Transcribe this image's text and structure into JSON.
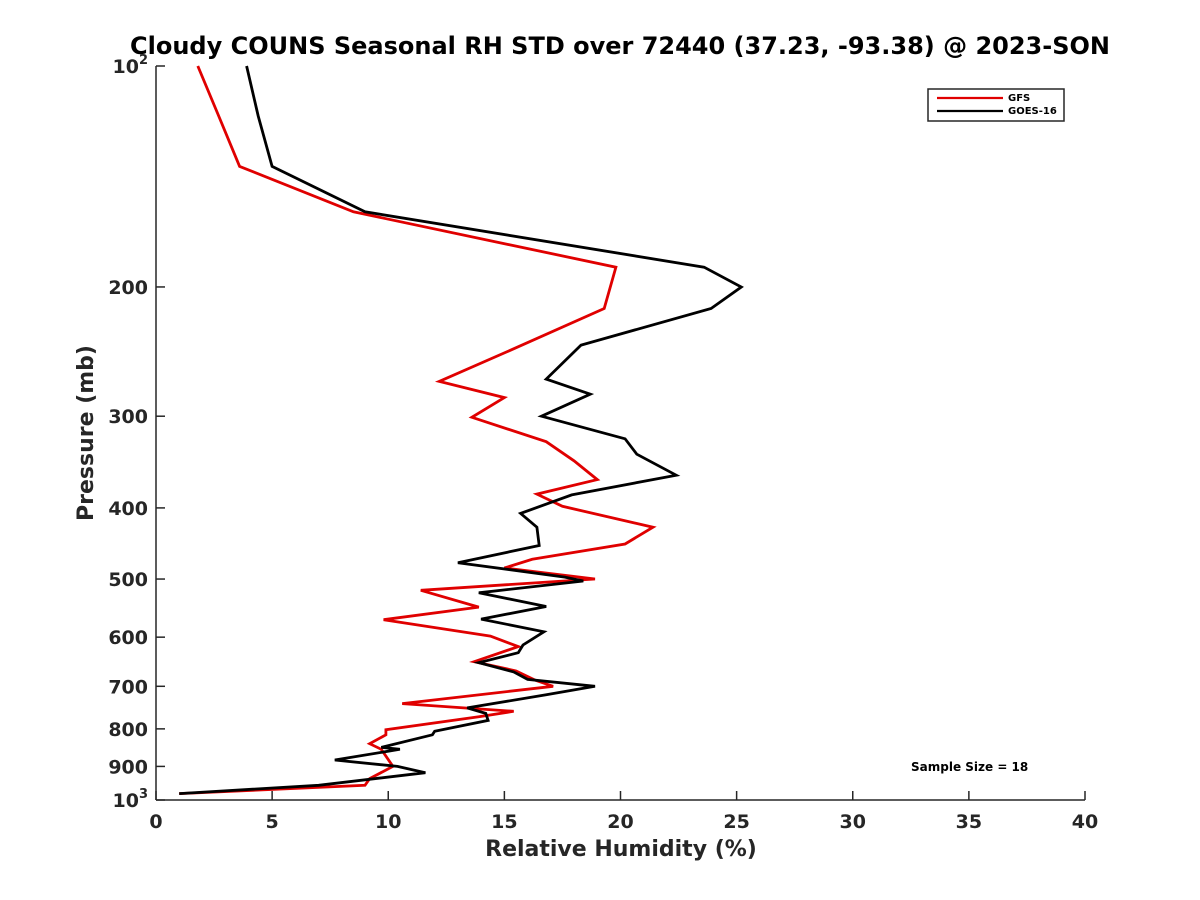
{
  "chart_data": {
    "type": "line",
    "title": "Cloudy COUNS Seasonal RH STD over 72440 (37.23, -93.38) @ 2023-SON",
    "xlabel": "Relative Humidity (%)",
    "ylabel": "Pressure (mb)",
    "xlim": [
      0,
      40
    ],
    "ylim": [
      100,
      1000
    ],
    "yscale": "log",
    "y_reversed": true,
    "grid": false,
    "xticks": [
      0,
      5,
      10,
      15,
      20,
      25,
      30,
      35,
      40
    ],
    "yticks": [
      {
        "value": 100,
        "base": "10",
        "exp": "2"
      },
      {
        "value": 200,
        "label": "200"
      },
      {
        "value": 300,
        "label": "300"
      },
      {
        "value": 400,
        "label": "400"
      },
      {
        "value": 500,
        "label": "500"
      },
      {
        "value": 600,
        "label": "600"
      },
      {
        "value": 700,
        "label": "700"
      },
      {
        "value": 800,
        "label": "800"
      },
      {
        "value": 900,
        "label": "900"
      },
      {
        "value": 1000,
        "base": "10",
        "exp": "3"
      }
    ],
    "legend_position": "top-right",
    "annotation": "Sample Size = 18",
    "series": [
      {
        "name": "GFS",
        "color": "#e00000",
        "points": [
          [
            1.8,
            100
          ],
          [
            2.7,
            117
          ],
          [
            3.6,
            137
          ],
          [
            8.5,
            158
          ],
          [
            19.8,
            188
          ],
          [
            19.3,
            214
          ],
          [
            15.0,
            246
          ],
          [
            12.2,
            269
          ],
          [
            15.0,
            283
          ],
          [
            13.6,
            301
          ],
          [
            16.8,
            325
          ],
          [
            18.0,
            345
          ],
          [
            19.0,
            366
          ],
          [
            16.4,
            383
          ],
          [
            17.5,
            398
          ],
          [
            21.4,
            425
          ],
          [
            20.2,
            448
          ],
          [
            16.2,
            470
          ],
          [
            15.0,
            483
          ],
          [
            18.9,
            500
          ],
          [
            11.4,
            518
          ],
          [
            13.9,
            546
          ],
          [
            9.8,
            568
          ],
          [
            14.4,
            598
          ],
          [
            15.6,
            618
          ],
          [
            13.7,
            648
          ],
          [
            15.5,
            667
          ],
          [
            16.3,
            686
          ],
          [
            17.1,
            700
          ],
          [
            10.6,
            739
          ],
          [
            15.4,
            757
          ],
          [
            13.9,
            770
          ],
          [
            9.9,
            802
          ],
          [
            9.9,
            815
          ],
          [
            9.2,
            838
          ],
          [
            9.7,
            853
          ],
          [
            10.2,
            900
          ],
          [
            9.2,
            935
          ],
          [
            9.0,
            955
          ],
          [
            1.0,
            980
          ]
        ]
      },
      {
        "name": "GOES-16",
        "color": "#000000",
        "points": [
          [
            3.9,
            100
          ],
          [
            4.4,
            117
          ],
          [
            5.0,
            137
          ],
          [
            9.0,
            158
          ],
          [
            23.6,
            188
          ],
          [
            25.2,
            200
          ],
          [
            23.9,
            214
          ],
          [
            18.3,
            240
          ],
          [
            16.8,
            267
          ],
          [
            18.7,
            280
          ],
          [
            16.6,
            300
          ],
          [
            20.2,
            322
          ],
          [
            20.7,
            338
          ],
          [
            22.4,
            361
          ],
          [
            17.9,
            384
          ],
          [
            15.7,
            407
          ],
          [
            16.4,
            425
          ],
          [
            16.5,
            450
          ],
          [
            13.0,
            475
          ],
          [
            17.6,
            497
          ],
          [
            18.4,
            503
          ],
          [
            13.9,
            522
          ],
          [
            16.8,
            545
          ],
          [
            14.0,
            567
          ],
          [
            16.7,
            590
          ],
          [
            15.8,
            615
          ],
          [
            15.6,
            630
          ],
          [
            13.9,
            650
          ],
          [
            15.4,
            669
          ],
          [
            16.0,
            685
          ],
          [
            18.9,
            700
          ],
          [
            16.8,
            719
          ],
          [
            13.4,
            749
          ],
          [
            14.2,
            762
          ],
          [
            14.3,
            779
          ],
          [
            12.0,
            806
          ],
          [
            11.9,
            815
          ],
          [
            9.7,
            848
          ],
          [
            10.5,
            853
          ],
          [
            7.7,
            882
          ],
          [
            10.4,
            900
          ],
          [
            11.6,
            918
          ],
          [
            7.0,
            955
          ],
          [
            1.0,
            980
          ]
        ]
      }
    ]
  }
}
